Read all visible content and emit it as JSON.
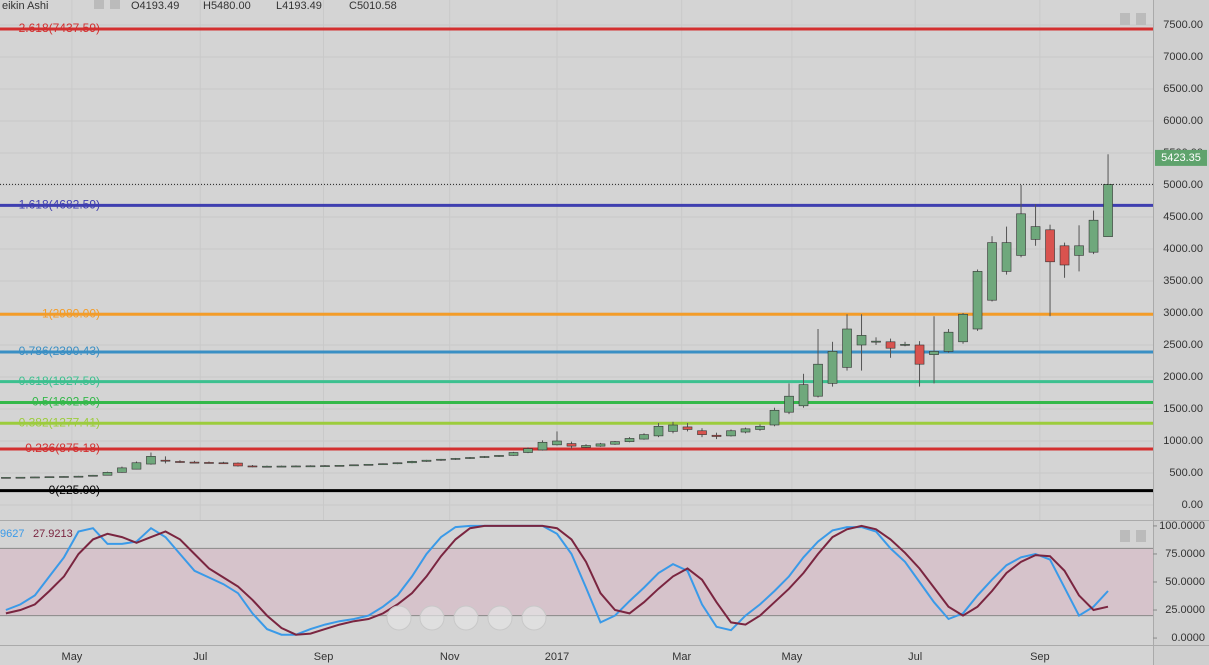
{
  "chart_data": [
    {
      "type": "candlestick",
      "title": "eikin Ashi",
      "header": [
        "O4193.49",
        "H5480.00",
        "L4193.49",
        "C5010.58"
      ],
      "open": [
        430,
        432,
        434,
        438,
        442,
        446,
        450,
        465,
        510,
        560,
        640,
        700,
        680,
        670,
        665,
        660,
        655,
        610,
        605,
        606,
        608,
        610,
        612,
        615,
        620,
        628,
        636,
        645,
        660,
        682,
        700,
        715,
        728,
        742,
        758,
        775,
        820,
        860,
        940,
        960,
        900,
        920,
        950,
        990,
        1030,
        1080,
        1150,
        1220,
        1160,
        1090,
        1080,
        1140,
        1180,
        1250,
        1450,
        1550,
        1700,
        1900,
        2150,
        2500,
        2550,
        2550,
        2500,
        2500,
        2350,
        2400,
        2550,
        2750,
        3200,
        3650,
        3900,
        4150,
        4300,
        4050,
        3900,
        3950,
        4193.49
      ],
      "high": [
        435,
        436,
        440,
        445,
        450,
        455,
        470,
        520,
        600,
        680,
        820,
        760,
        700,
        690,
        680,
        675,
        665,
        625,
        615,
        615,
        618,
        620,
        622,
        625,
        632,
        640,
        650,
        665,
        690,
        705,
        720,
        735,
        750,
        765,
        780,
        830,
        900,
        1010,
        1150,
        990,
        950,
        970,
        1000,
        1060,
        1120,
        1280,
        1300,
        1280,
        1200,
        1130,
        1180,
        1210,
        1260,
        1520,
        1900,
        2050,
        2750,
        2550,
        2980,
        2980,
        2620,
        2600,
        2550,
        2560,
        2950,
        2750,
        3000,
        3680,
        4200,
        4350,
        5000,
        4700,
        4380,
        4100,
        4370,
        4600,
        5480
      ],
      "low": [
        425,
        428,
        430,
        435,
        438,
        442,
        448,
        462,
        505,
        555,
        630,
        650,
        660,
        655,
        650,
        645,
        600,
        590,
        595,
        598,
        600,
        602,
        605,
        608,
        612,
        620,
        628,
        638,
        652,
        675,
        690,
        705,
        720,
        735,
        750,
        770,
        810,
        850,
        930,
        880,
        890,
        910,
        940,
        980,
        1020,
        1060,
        1120,
        1150,
        1060,
        1030,
        1070,
        1120,
        1160,
        1230,
        1420,
        1520,
        1680,
        1850,
        2100,
        2100,
        2500,
        2300,
        2480,
        1850,
        1900,
        2380,
        2520,
        2720,
        3180,
        3600,
        3870,
        4050,
        2950,
        3550,
        3650,
        3920,
        4193.49
      ],
      "close": [
        432,
        434,
        438,
        442,
        446,
        450,
        465,
        510,
        580,
        660,
        760,
        690,
        670,
        665,
        660,
        658,
        610,
        605,
        606,
        608,
        610,
        612,
        615,
        620,
        628,
        636,
        645,
        660,
        682,
        700,
        715,
        728,
        742,
        758,
        775,
        820,
        880,
        980,
        1000,
        920,
        930,
        955,
        990,
        1040,
        1100,
        1230,
        1250,
        1180,
        1100,
        1070,
        1160,
        1190,
        1230,
        1480,
        1700,
        1880,
        2200,
        2400,
        2750,
        2650,
        2560,
        2450,
        2510,
        2200,
        2400,
        2700,
        2980,
        3650,
        4100,
        4100,
        4550,
        4350,
        3800,
        3750,
        4050,
        4450,
        5010.58
      ],
      "up_color": "#6fa87c",
      "down_color": "#d9534f",
      "last_price": {
        "value": 5423.35,
        "label": "5423.35",
        "color": "#5fa36d"
      },
      "levels": [
        {
          "label": "2.618(7437.59)",
          "value": 7437.59,
          "color": "#d32f2f"
        },
        {
          "label": "1.618(4682.59)",
          "value": 4682.59,
          "color": "#3f3fb0"
        },
        {
          "label": "1(2980.00)",
          "value": 2980.0,
          "color": "#f39c28"
        },
        {
          "label": "0.786(2390.43)",
          "value": 2390.43,
          "color": "#3a8fc4"
        },
        {
          "label": "0.618(1927.59)",
          "value": 1927.59,
          "color": "#3cc08f"
        },
        {
          "label": "0.5(1602.50)",
          "value": 1602.5,
          "color": "#34b84a"
        },
        {
          "label": "0.382(1277.41)",
          "value": 1277.41,
          "color": "#9ccc3c"
        },
        {
          "label": "0.236(875.18)",
          "value": 875.18,
          "color": "#d32f2f"
        },
        {
          "label": "0(225.00)",
          "value": 225.0,
          "color": "#000000"
        }
      ],
      "xlim": [
        -0.41,
        79.1
      ],
      "ylim": [
        -234.4,
        7890.6
      ],
      "xticks": [
        {
          "value": 4.55,
          "label": "May"
        },
        {
          "value": 13.4,
          "label": "Jul"
        },
        {
          "value": 21.9,
          "label": "Sep"
        },
        {
          "value": 30.6,
          "label": "Nov"
        },
        {
          "value": 38.0,
          "label": "2017"
        },
        {
          "value": 46.6,
          "label": "Mar"
        },
        {
          "value": 54.2,
          "label": "May"
        },
        {
          "value": 62.7,
          "label": "Jul"
        },
        {
          "value": 71.3,
          "label": "Sep"
        }
      ],
      "yticks": [
        {
          "value": 0,
          "label": "0.00"
        },
        {
          "value": 500,
          "label": "500.00"
        },
        {
          "value": 1000,
          "label": "1000.00"
        },
        {
          "value": 1500,
          "label": "1500.00"
        },
        {
          "value": 2000,
          "label": "2000.00"
        },
        {
          "value": 2500,
          "label": "2500.00"
        },
        {
          "value": 3000,
          "label": "3000.00"
        },
        {
          "value": 3500,
          "label": "3500.00"
        },
        {
          "value": 4000,
          "label": "4000.00"
        },
        {
          "value": 4500,
          "label": "4500.00"
        },
        {
          "value": 5000,
          "label": "5000.00"
        },
        {
          "value": 5500,
          "label": "5500.00"
        },
        {
          "value": 6000,
          "label": "6000.00"
        },
        {
          "value": 6500,
          "label": "6500.00"
        },
        {
          "value": 7000,
          "label": "7000.00"
        },
        {
          "value": 7500,
          "label": "7500.00"
        }
      ],
      "grid": true
    },
    {
      "type": "stochastic",
      "series": [
        {
          "color": "#3a9ae8",
          "value_label": "9627",
          "values": [
            25,
            30,
            38,
            55,
            72,
            95,
            98,
            84,
            84,
            86,
            98,
            90,
            75,
            60,
            54,
            48,
            40,
            22,
            8,
            3,
            3,
            8,
            12,
            15,
            17,
            20,
            28,
            38,
            55,
            75,
            90,
            99,
            100,
            100,
            100,
            100,
            100,
            100,
            93,
            75,
            45,
            14,
            20,
            33,
            45,
            58,
            66,
            60,
            30,
            10,
            7,
            20,
            30,
            42,
            55,
            72,
            86,
            96,
            99,
            99,
            95,
            80,
            68,
            50,
            32,
            17,
            22,
            38,
            52,
            65,
            72,
            75,
            70,
            45,
            20,
            28,
            42
          ]
        },
        {
          "color": "#7a2540",
          "value_label": "27.9213",
          "values": [
            22,
            25,
            30,
            42,
            55,
            75,
            88,
            93,
            90,
            85,
            90,
            95,
            88,
            75,
            62,
            54,
            46,
            34,
            20,
            9,
            3,
            4,
            8,
            12,
            15,
            17,
            22,
            30,
            40,
            55,
            73,
            88,
            98,
            100,
            100,
            100,
            100,
            100,
            98,
            88,
            68,
            40,
            25,
            22,
            32,
            44,
            55,
            62,
            52,
            32,
            14,
            12,
            20,
            32,
            44,
            58,
            75,
            90,
            97,
            100,
            97,
            88,
            76,
            62,
            45,
            28,
            20,
            28,
            42,
            58,
            68,
            74,
            73,
            60,
            38,
            25,
            27.9213
          ]
        }
      ],
      "band": [
        20,
        80
      ],
      "xlim": [
        -0.41,
        79.1
      ],
      "ylim": [
        -6.2,
        104.4
      ],
      "yticks": [
        {
          "value": 0,
          "label": "0.0000"
        },
        {
          "value": 25,
          "label": "25.0000"
        },
        {
          "value": 50,
          "label": "50.0000"
        },
        {
          "value": 75,
          "label": "75.0000"
        },
        {
          "value": 100,
          "label": "100.0000"
        }
      ]
    }
  ]
}
